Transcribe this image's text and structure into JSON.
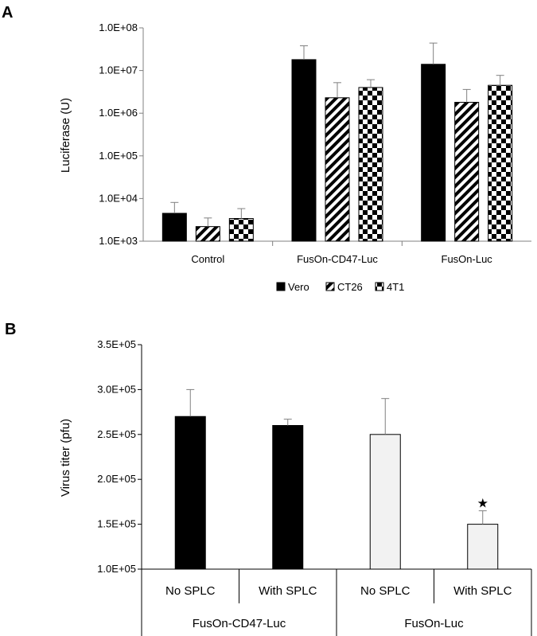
{
  "panel_a_label": "A",
  "panel_b_label": "B",
  "chart_data": [
    {
      "type": "bar",
      "scale": "log",
      "title": "",
      "ylabel": "Luciferase (U)",
      "xlabel": "",
      "ylim": [
        1000,
        100000000
      ],
      "yticks": [
        "1.0E+03",
        "1.0E+04",
        "1.0E+05",
        "1.0E+06",
        "1.0E+07",
        "1.0E+08"
      ],
      "categories": [
        "Control",
        "FusOn-CD47-Luc",
        "FusOn-Luc"
      ],
      "series": [
        {
          "name": "Vero",
          "pattern": "solid",
          "values": [
            4500,
            18000000,
            14000000
          ],
          "errors": [
            3600,
            20000000,
            30000000
          ]
        },
        {
          "name": "CT26",
          "pattern": "stripes",
          "values": [
            2200,
            2300000,
            1800000
          ],
          "errors": [
            1300,
            2900000,
            1800000
          ]
        },
        {
          "name": "4T1",
          "pattern": "checker",
          "values": [
            3400,
            4000000,
            4500000
          ],
          "errors": [
            2400,
            2100000,
            3200000
          ]
        }
      ],
      "legend": "bottom",
      "colors": {
        "bar": "#000000",
        "error": "#808080"
      }
    },
    {
      "type": "bar",
      "title": "",
      "ylabel": "Virus titer (pfu)",
      "xlabel": "",
      "ylim": [
        100000,
        350000
      ],
      "yticks": [
        "1.0E+05",
        "1.5E+05",
        "2.0E+05",
        "2.5E+05",
        "3.0E+05",
        "3.5E+05"
      ],
      "categories": [
        "No SPLC",
        "With SPLC",
        "No SPLC",
        "With SPLC"
      ],
      "groups": [
        "FusOn-CD47-Luc",
        "FusOn-Luc"
      ],
      "values": [
        270000,
        260000,
        250000,
        150000
      ],
      "errors": [
        30000,
        7000,
        40000,
        15000
      ],
      "bar_colors": [
        "#000000",
        "#000000",
        "#f2f2f2",
        "#f2f2f2"
      ],
      "annotations": [
        {
          "category_index": 3,
          "text": "★"
        }
      ],
      "colors": {
        "error": "#808080",
        "axis": "#000000"
      }
    }
  ]
}
